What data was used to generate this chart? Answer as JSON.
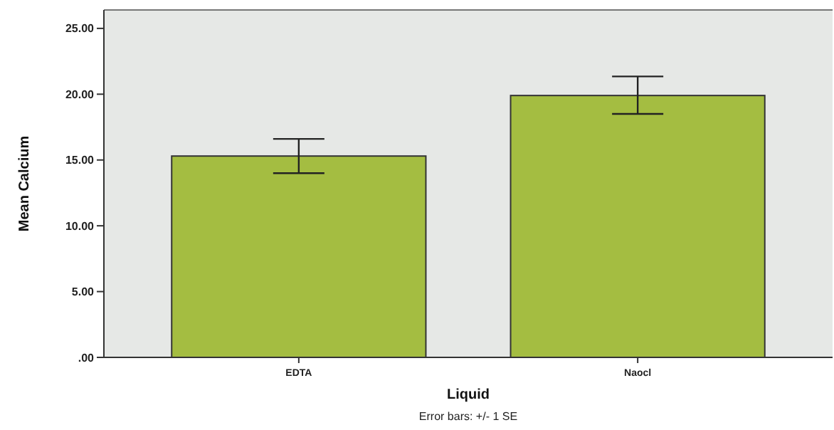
{
  "chart_data": {
    "type": "bar",
    "xlabel": "Liquid",
    "ylabel": "Mean Calcium",
    "categories": [
      "EDTA",
      "Naocl"
    ],
    "values": [
      15.3,
      19.9
    ],
    "errors": [
      [
        14.0,
        16.6
      ],
      [
        18.5,
        21.35
      ]
    ],
    "color": "#a4bd41",
    "ylim": [
      0,
      26.4
    ],
    "yticks": [
      {
        "value": 0,
        "label": ".00"
      },
      {
        "value": 5,
        "label": "5.00"
      },
      {
        "value": 10,
        "label": "10.00"
      },
      {
        "value": 15,
        "label": "15.00"
      },
      {
        "value": 20,
        "label": "20.00"
      },
      {
        "value": 25,
        "label": "25.00"
      }
    ],
    "grid": false,
    "annotations": [
      "Error bars: +/- 1 SE"
    ]
  }
}
